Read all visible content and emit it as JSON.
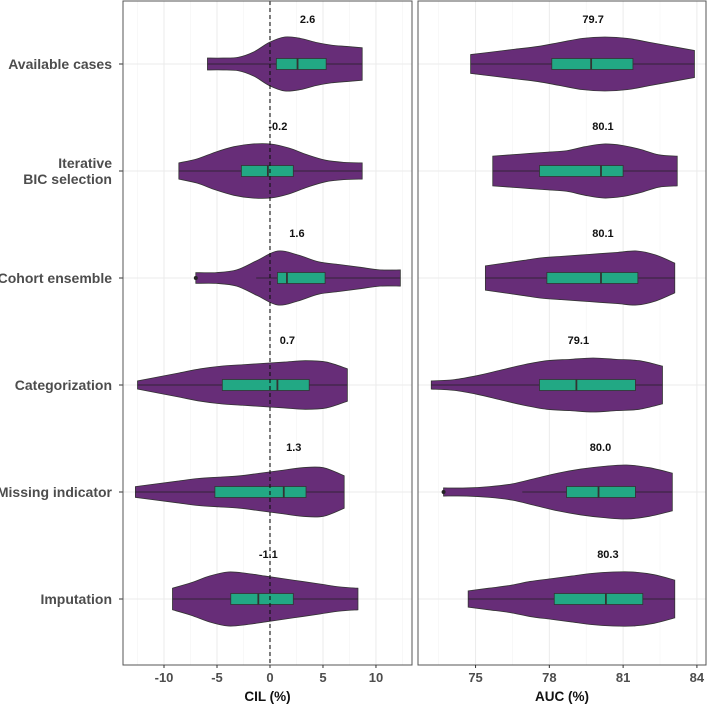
{
  "chart_data": {
    "type": "violin",
    "categories": [
      "Available cases",
      "Iterative\nBIC selection",
      "Cohort ensemble",
      "Categorization",
      "Missing indicator",
      "Imputation"
    ],
    "category_lines": [
      [
        "Available cases"
      ],
      [
        "Iterative",
        "BIC selection"
      ],
      [
        "Cohort ensemble"
      ],
      [
        "Categorization"
      ],
      [
        "Missing indicator"
      ],
      [
        "Imputation"
      ]
    ],
    "colors": {
      "violin": "#672d78",
      "box": "#22a884",
      "outline": "#333333",
      "grid": "#ebebeb"
    },
    "panels": [
      {
        "xlabel": "CIL (%)",
        "xlim": [
          -13.87,
          13.4
        ],
        "ticks": [
          -10,
          -5,
          0,
          5,
          10
        ],
        "tick_labels": [
          "-10",
          "-5",
          "0",
          "5",
          "10"
        ],
        "minor_ticks": [
          -12.5,
          -7.5,
          -2.5,
          2.5,
          7.5,
          12.5
        ],
        "reference_line": 0,
        "series": [
          {
            "label": "2.6",
            "min": -5.9,
            "max": 8.7,
            "whisker": [
              -5.9,
              8.7
            ],
            "q1": 0.6,
            "median": 2.6,
            "q3": 5.3,
            "outliers": [],
            "density": [
              0.22,
              0.22,
              0.25,
              0.45,
              0.8,
              1.0,
              0.95,
              0.8,
              0.7,
              0.65,
              0.6
            ]
          },
          {
            "label": "-0.2",
            "min": -8.6,
            "max": 8.7,
            "whisker": [
              -8.6,
              8.7
            ],
            "q1": -2.7,
            "median": -0.2,
            "q3": 2.2,
            "outliers": [],
            "density": [
              0.3,
              0.45,
              0.7,
              0.9,
              1.0,
              1.0,
              0.85,
              0.6,
              0.4,
              0.32,
              0.3
            ]
          },
          {
            "label": "1.6",
            "min": -7.0,
            "max": 12.3,
            "whisker": [
              -1.3,
              12.3
            ],
            "q1": 0.7,
            "median": 1.6,
            "q3": 5.2,
            "outliers": [
              -7.0
            ],
            "density": [
              0.2,
              0.2,
              0.3,
              0.65,
              1.0,
              0.85,
              0.6,
              0.5,
              0.4,
              0.3,
              0.3
            ]
          },
          {
            "label": "0.7",
            "min": -12.5,
            "max": 7.3,
            "whisker": [
              -12.5,
              7.3
            ],
            "q1": -4.5,
            "median": 0.7,
            "q3": 3.7,
            "outliers": [],
            "density": [
              0.15,
              0.3,
              0.45,
              0.6,
              0.7,
              0.75,
              0.8,
              0.85,
              0.9,
              0.85,
              0.6
            ]
          },
          {
            "label": "1.3",
            "min": -12.7,
            "max": 7.0,
            "whisker": [
              -12.7,
              7.0
            ],
            "q1": -5.2,
            "median": 1.3,
            "q3": 3.4,
            "outliers": [],
            "density": [
              0.2,
              0.3,
              0.4,
              0.5,
              0.55,
              0.6,
              0.7,
              0.8,
              0.9,
              0.9,
              0.6
            ]
          },
          {
            "label": "-1.1",
            "min": -9.2,
            "max": 8.3,
            "whisker": [
              -9.2,
              8.3
            ],
            "q1": -3.7,
            "median": -1.1,
            "q3": 2.2,
            "outliers": [],
            "density": [
              0.4,
              0.6,
              0.85,
              1.0,
              0.95,
              0.85,
              0.75,
              0.65,
              0.55,
              0.45,
              0.4
            ]
          }
        ]
      },
      {
        "xlabel": "AUC (%)",
        "xlim": [
          72.66,
          84.37
        ],
        "ticks": [
          75,
          78,
          81,
          84
        ],
        "tick_labels": [
          "75",
          "78",
          "81",
          "84"
        ],
        "minor_ticks": [
          73.5,
          76.5,
          79.5,
          82.5
        ],
        "reference_line": null,
        "series": [
          {
            "label": "79.7",
            "min": 74.8,
            "max": 83.9,
            "whisker": [
              74.8,
              83.9
            ],
            "q1": 78.1,
            "median": 79.7,
            "q3": 81.4,
            "outliers": [],
            "density": [
              0.35,
              0.45,
              0.55,
              0.65,
              0.8,
              0.95,
              1.0,
              0.95,
              0.8,
              0.65,
              0.5
            ]
          },
          {
            "label": "80.1",
            "min": 75.7,
            "max": 83.2,
            "whisker": [
              75.7,
              83.2
            ],
            "q1": 77.6,
            "median": 80.1,
            "q3": 81.0,
            "outliers": [],
            "density": [
              0.55,
              0.6,
              0.65,
              0.7,
              0.75,
              0.9,
              1.0,
              0.95,
              0.8,
              0.6,
              0.55
            ]
          },
          {
            "label": "80.1",
            "min": 75.4,
            "max": 83.1,
            "whisker": [
              75.4,
              83.1
            ],
            "q1": 77.9,
            "median": 80.1,
            "q3": 81.6,
            "outliers": [],
            "density": [
              0.45,
              0.55,
              0.65,
              0.75,
              0.8,
              0.85,
              0.9,
              0.95,
              1.0,
              0.85,
              0.55
            ]
          },
          {
            "label": "79.1",
            "min": 73.2,
            "max": 82.6,
            "whisker": [
              73.2,
              82.6
            ],
            "q1": 77.6,
            "median": 79.1,
            "q3": 81.5,
            "outliers": [],
            "density": [
              0.15,
              0.2,
              0.35,
              0.55,
              0.75,
              0.9,
              0.95,
              1.0,
              0.95,
              0.9,
              0.7
            ]
          },
          {
            "label": "80.0",
            "min": 73.7,
            "max": 83.0,
            "whisker": [
              76.9,
              83.0
            ],
            "q1": 78.7,
            "median": 80.0,
            "q3": 81.5,
            "outliers": [
              73.7
            ],
            "density": [
              0.15,
              0.15,
              0.2,
              0.3,
              0.5,
              0.7,
              0.85,
              0.95,
              1.0,
              0.9,
              0.7
            ]
          },
          {
            "label": "80.3",
            "min": 74.7,
            "max": 83.1,
            "whisker": [
              74.7,
              83.1
            ],
            "q1": 78.2,
            "median": 80.3,
            "q3": 81.8,
            "outliers": [],
            "density": [
              0.3,
              0.4,
              0.5,
              0.65,
              0.75,
              0.85,
              0.95,
              1.0,
              1.0,
              0.9,
              0.7
            ]
          }
        ]
      }
    ]
  }
}
